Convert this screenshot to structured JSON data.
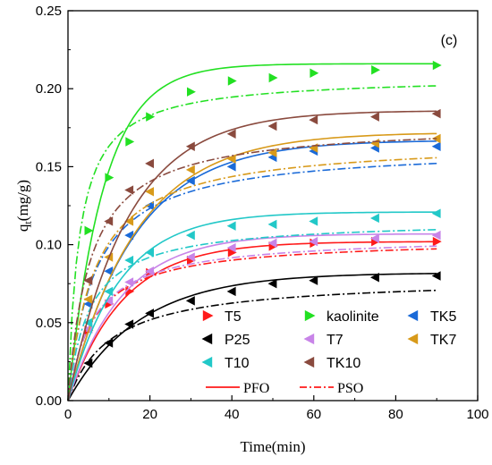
{
  "chart_data": {
    "type": "line",
    "panel_label": "(c)",
    "xlabel": "Time(min)",
    "ylabel_main": "q",
    "ylabel_sub": "t",
    "ylabel_rest": "(mg/g)",
    "xlim": [
      0,
      100
    ],
    "ylim": [
      0,
      0.25
    ],
    "x_ticks": [
      "0",
      "20",
      "40",
      "60",
      "80",
      "100"
    ],
    "y_ticks": [
      "0.00",
      "0.05",
      "0.10",
      "0.15",
      "0.20",
      "0.25"
    ],
    "grid": false,
    "legend_position": "bottom-right",
    "x": [
      5,
      10,
      15,
      20,
      30,
      40,
      50,
      60,
      75,
      90
    ],
    "series": [
      {
        "name": "T5",
        "color": "#ff1a1a",
        "direction": "right",
        "qe_pfo": 0.102,
        "k_pfo": 0.075,
        "qe_pso": 0.104,
        "k_pso": 1.55,
        "values": [
          0.045,
          0.062,
          0.07,
          0.082,
          0.09,
          0.095,
          0.099,
          0.101,
          0.102,
          0.102
        ]
      },
      {
        "name": "kaolinite",
        "color": "#22e022",
        "direction": "right",
        "qe_pfo": 0.216,
        "k_pfo": 0.115,
        "qe_pso": 0.208,
        "k_pso": 1.75,
        "values": [
          0.109,
          0.143,
          0.166,
          0.182,
          0.198,
          0.205,
          0.207,
          0.21,
          0.212,
          0.215
        ]
      },
      {
        "name": "TK5",
        "color": "#1a6ad8",
        "direction": "left",
        "qe_pfo": 0.167,
        "k_pfo": 0.062,
        "qe_pso": 0.163,
        "k_pso": 0.95,
        "values": [
          0.062,
          0.083,
          0.106,
          0.125,
          0.141,
          0.15,
          0.156,
          0.16,
          0.162,
          0.163
        ]
      },
      {
        "name": "P25",
        "color": "#000000",
        "direction": "left",
        "qe_pfo": 0.082,
        "k_pfo": 0.057,
        "qe_pso": 0.079,
        "k_pso": 1.2,
        "values": [
          0.024,
          0.037,
          0.049,
          0.056,
          0.064,
          0.07,
          0.075,
          0.077,
          0.079,
          0.08
        ]
      },
      {
        "name": "T7",
        "color": "#c884e8",
        "direction": "left",
        "qe_pfo": 0.107,
        "k_pfo": 0.075,
        "qe_pso": 0.106,
        "k_pso": 1.5,
        "values": [
          0.046,
          0.064,
          0.076,
          0.083,
          0.092,
          0.098,
          0.101,
          0.102,
          0.104,
          0.106
        ]
      },
      {
        "name": "TK7",
        "color": "#d89a1a",
        "direction": "left",
        "qe_pfo": 0.172,
        "k_pfo": 0.06,
        "qe_pso": 0.167,
        "k_pso": 0.92,
        "values": [
          0.065,
          0.092,
          0.115,
          0.134,
          0.148,
          0.155,
          0.159,
          0.162,
          0.165,
          0.168
        ]
      },
      {
        "name": "T10",
        "color": "#22c8c8",
        "direction": "left",
        "qe_pfo": 0.121,
        "k_pfo": 0.08,
        "qe_pso": 0.116,
        "k_pso": 1.65,
        "values": [
          0.05,
          0.07,
          0.09,
          0.095,
          0.106,
          0.112,
          0.113,
          0.115,
          0.117,
          0.12
        ]
      },
      {
        "name": "TK10",
        "color": "#8a4a3e",
        "direction": "left",
        "qe_pfo": 0.186,
        "k_pfo": 0.068,
        "qe_pso": 0.178,
        "k_pso": 1.05,
        "values": [
          0.077,
          0.115,
          0.135,
          0.152,
          0.163,
          0.171,
          0.176,
          0.18,
          0.182,
          0.184
        ]
      }
    ],
    "fit_legend": [
      {
        "name": "PFO",
        "style": "solid",
        "color": "#ff1a1a"
      },
      {
        "name": "PSO",
        "style": "dashdot",
        "color": "#ff1a1a"
      }
    ]
  }
}
